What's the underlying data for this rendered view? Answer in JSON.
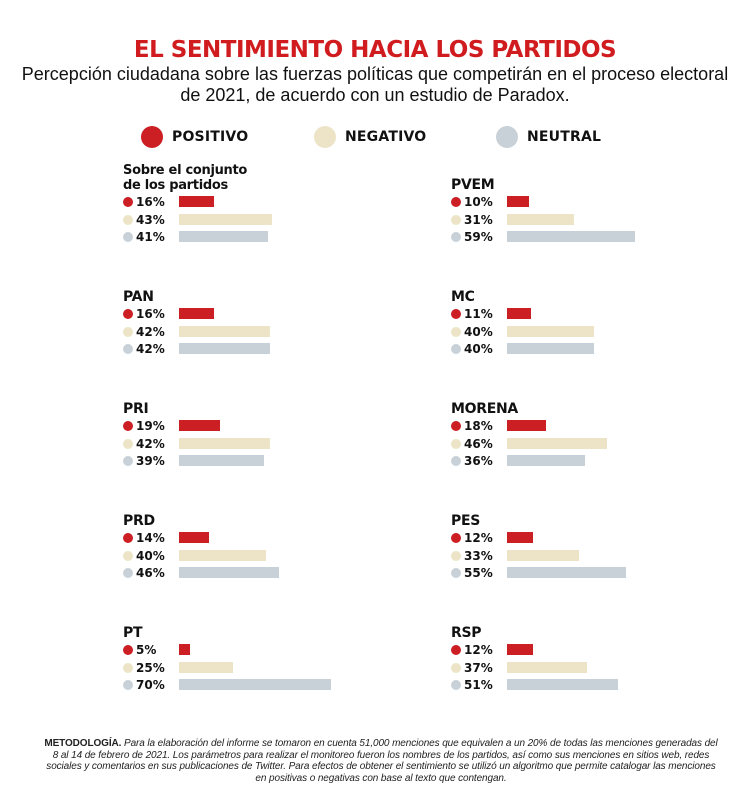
{
  "title": "EL SENTIMIENTO HACIA LOS PARTIDOS",
  "subtitle": "Percepción ciudadana sobre las fuerzas políticas que competirán en el proceso electoral de 2021, de acuerdo con un estudio de Paradox.",
  "colors": {
    "positivo": "#cc1f24",
    "negativo": "#ede3c6",
    "neutral": "#c9d1d8",
    "title": "#d01c1f"
  },
  "chart_data": {
    "type": "bar",
    "title": "EL SENTIMIENTO HACIA LOS PARTIDOS",
    "series_names": [
      "POSITIVO",
      "NEGATIVO",
      "NEUTRAL"
    ],
    "unit": "%",
    "xlim": [
      0,
      100
    ],
    "panels": [
      {
        "name": "Sobre el conjunto de los partidos",
        "name_lines": [
          "Sobre el conjunto",
          "de los partidos"
        ],
        "values": [
          16,
          43,
          41
        ],
        "labels": [
          "16%",
          "43%",
          "41%"
        ]
      },
      {
        "name": "PVEM",
        "values": [
          10,
          31,
          59
        ],
        "labels": [
          "10%",
          "31%",
          "59%"
        ]
      },
      {
        "name": "PAN",
        "values": [
          16,
          42,
          42
        ],
        "labels": [
          "16%",
          "42%",
          "42%"
        ]
      },
      {
        "name": "MC",
        "values": [
          11,
          40,
          40
        ],
        "labels": [
          "11%",
          "40%",
          "40%"
        ]
      },
      {
        "name": "PRI",
        "values": [
          19,
          42,
          39
        ],
        "labels": [
          "19%",
          "42%",
          "39%"
        ]
      },
      {
        "name": "MORENA",
        "values": [
          18,
          46,
          36
        ],
        "labels": [
          "18%",
          "46%",
          "36%"
        ]
      },
      {
        "name": "PRD",
        "values": [
          14,
          40,
          46
        ],
        "labels": [
          "14%",
          "40%",
          "46%"
        ]
      },
      {
        "name": "PES",
        "values": [
          12,
          33,
          55
        ],
        "labels": [
          "12%",
          "33%",
          "55%"
        ]
      },
      {
        "name": "PT",
        "values": [
          5,
          25,
          70
        ],
        "labels": [
          "5%",
          "25%",
          "70%"
        ]
      },
      {
        "name": "RSP",
        "values": [
          12,
          37,
          51
        ],
        "labels": [
          "12%",
          "37%",
          "51%"
        ]
      }
    ]
  },
  "methodology": {
    "label": "METODOLOGÍA.",
    "text": "Para la elaboración del informe se tomaron en cuenta 51,000 menciones que equivalen a un 20% de todas las menciones generadas del 8 al 14 de febrero de 2021. Los parámetros para realizar el monitoreo fueron los nombres de los partidos, así como sus menciones en sitios web, redes sociales y comentarios en sus publicaciones de Twitter. Para efectos de obtener el sentimiento se utilizó un algoritmo que permite catalogar las menciones en positivas o negativas con base al texto que contengan."
  }
}
